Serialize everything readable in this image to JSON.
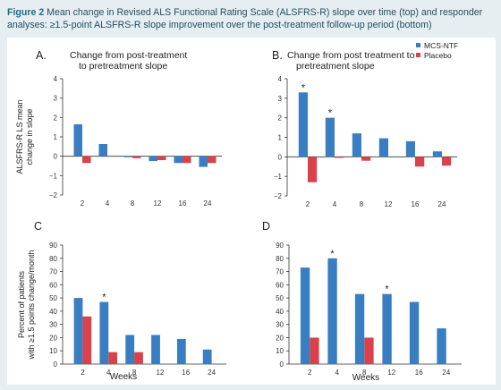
{
  "caption": {
    "label": "Figure 2",
    "text": "Mean change in Revised ALS Functional Rating Scale (ALSFRS-R) slope over time (top) and responder analyses: ≥1.5-point ALSFRS-R slope improvement over the post-treatment follow-up period (bottom)"
  },
  "colors": {
    "mcs": "#3a7ec2",
    "placebo": "#d9424a",
    "axis": "#333333"
  },
  "legend": {
    "items": [
      "MCS-NTF",
      "Placebo"
    ]
  },
  "chart_data": [
    {
      "panel": "A",
      "type": "bar",
      "title": "Change from post-treatment to pretreatment slope",
      "title_lines": [
        "Change from post-treatment",
        "to pretreatment slope"
      ],
      "ylabel_lines": [
        "ALSFRS-R LS mean",
        "change in slope"
      ],
      "xlabel": "",
      "categories": [
        "2",
        "4",
        "8",
        "12",
        "16",
        "24"
      ],
      "ylim": [
        -2,
        4
      ],
      "yticks": [
        -2,
        -1,
        0,
        1,
        2,
        3,
        4
      ],
      "series": [
        {
          "name": "MCS-NTF",
          "values": [
            1.65,
            0.63,
            -0.05,
            -0.25,
            -0.35,
            -0.55
          ]
        },
        {
          "name": "Placebo",
          "values": [
            -0.35,
            0.0,
            -0.1,
            -0.2,
            -0.35,
            -0.35
          ]
        }
      ],
      "stars": []
    },
    {
      "panel": "B",
      "type": "bar",
      "title": "Change from post treatment to pretreatment slope",
      "title_lines": [
        "Change from post treatment to",
        "pretreatment slope"
      ],
      "ylabel_lines": [],
      "xlabel": "",
      "categories": [
        "2",
        "4",
        "8",
        "12",
        "16",
        "24"
      ],
      "ylim": [
        -2,
        4
      ],
      "yticks": [
        -2,
        -1,
        0,
        1,
        2,
        3,
        4
      ],
      "series": [
        {
          "name": "MCS-NTF",
          "values": [
            3.3,
            2.0,
            1.2,
            0.95,
            0.8,
            0.28
          ]
        },
        {
          "name": "Placebo",
          "values": [
            -1.3,
            -0.05,
            -0.2,
            0.0,
            -0.5,
            -0.45
          ]
        }
      ],
      "stars": [
        0,
        1
      ],
      "legend": "top-right"
    },
    {
      "panel": "C",
      "type": "bar",
      "title": "",
      "title_lines": [],
      "ylabel_lines": [
        "Percent of patients",
        "with ≥1.5 points change/month"
      ],
      "xlabel": "Weeks",
      "categories": [
        "2",
        "4",
        "8",
        "12",
        "16",
        "24"
      ],
      "ylim": [
        0,
        90
      ],
      "yticks": [
        0,
        10,
        20,
        30,
        40,
        50,
        60,
        70,
        80,
        90
      ],
      "series": [
        {
          "name": "MCS-NTF",
          "values": [
            50,
            47,
            22,
            22,
            19,
            11
          ]
        },
        {
          "name": "Placebo",
          "values": [
            36,
            9,
            9,
            0,
            0,
            0
          ]
        }
      ],
      "stars": [
        1
      ]
    },
    {
      "panel": "D",
      "type": "bar",
      "title": "",
      "title_lines": [],
      "ylabel_lines": [],
      "xlabel": "Weeks",
      "categories": [
        "2",
        "4",
        "8",
        "12",
        "16",
        "24"
      ],
      "ylim": [
        0,
        90
      ],
      "yticks": [
        0,
        10,
        20,
        30,
        40,
        50,
        60,
        70,
        80,
        90
      ],
      "series": [
        {
          "name": "MCS-NTF",
          "values": [
            73,
            80,
            53,
            53,
            47,
            27
          ]
        },
        {
          "name": "Placebo",
          "values": [
            20,
            0,
            20,
            0,
            0,
            0
          ]
        }
      ],
      "stars": [
        1,
        3
      ]
    }
  ]
}
